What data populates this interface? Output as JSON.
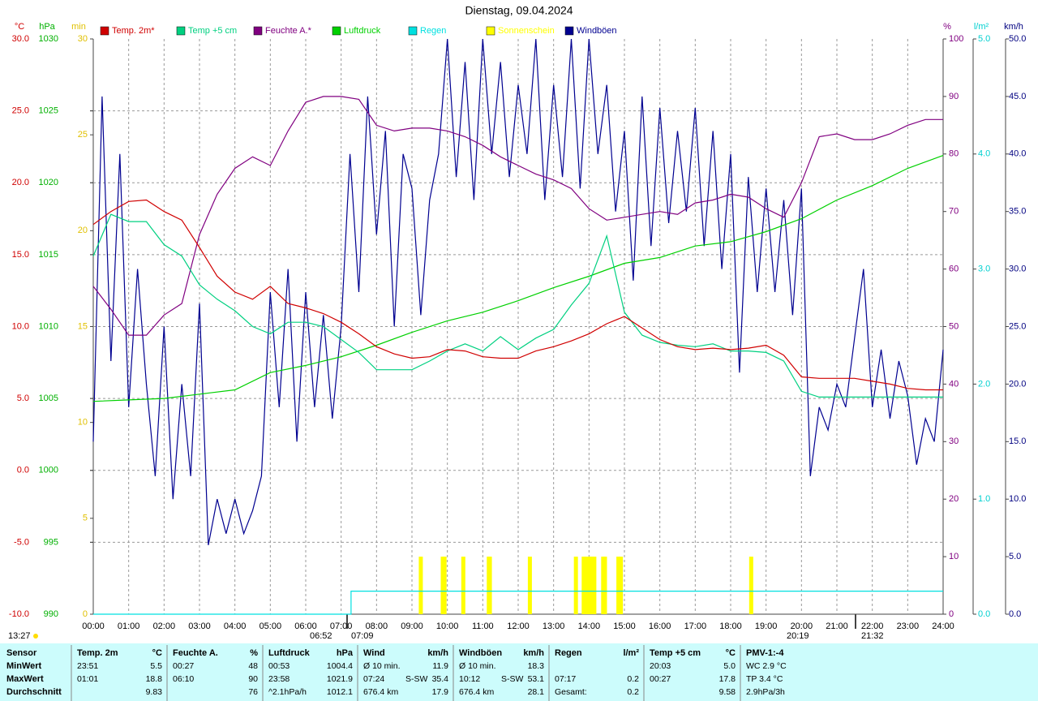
{
  "chart_data": {
    "type": "line",
    "title": "Dienstag, 09.04.2024",
    "grid": true,
    "xlim": [
      0,
      24
    ],
    "xticks": [
      {
        "value": 0,
        "label": "00:00"
      },
      {
        "value": 1,
        "label": "01:00"
      },
      {
        "value": 2,
        "label": "02:00"
      },
      {
        "value": 3,
        "label": "03:00"
      },
      {
        "value": 4,
        "label": "04:00"
      },
      {
        "value": 5,
        "label": "05:00"
      },
      {
        "value": 6,
        "label": "06:00"
      },
      {
        "value": 7,
        "label": "07:00"
      },
      {
        "value": 8,
        "label": "08:00"
      },
      {
        "value": 9,
        "label": "09:00"
      },
      {
        "value": 10,
        "label": "10:00"
      },
      {
        "value": 11,
        "label": "11:00"
      },
      {
        "value": 12,
        "label": "12:00"
      },
      {
        "value": 13,
        "label": "13:00"
      },
      {
        "value": 14,
        "label": "14:00"
      },
      {
        "value": 15,
        "label": "15:00"
      },
      {
        "value": 16,
        "label": "16:00"
      },
      {
        "value": 17,
        "label": "17:00"
      },
      {
        "value": 18,
        "label": "18:00"
      },
      {
        "value": 19,
        "label": "19:00"
      },
      {
        "value": 20,
        "label": "20:00"
      },
      {
        "value": 21,
        "label": "21:00"
      },
      {
        "value": 22,
        "label": "22:00"
      },
      {
        "value": 23,
        "label": "23:00"
      },
      {
        "value": 24,
        "label": "24:00"
      }
    ],
    "axes": [
      {
        "title": "°C",
        "color": "#d00000",
        "lim": [
          -10,
          30
        ],
        "ticks": [
          {
            "value": -10,
            "label": "-10.0"
          },
          {
            "value": -5,
            "label": "-5.0"
          },
          {
            "value": 0,
            "label": "0.0"
          },
          {
            "value": 5,
            "label": "5.0"
          },
          {
            "value": 10,
            "label": "10.0"
          },
          {
            "value": 15,
            "label": "15.0"
          },
          {
            "value": 20,
            "label": "20.0"
          },
          {
            "value": 25,
            "label": "25.0"
          },
          {
            "value": 30,
            "label": "30.0"
          }
        ]
      },
      {
        "title": "hPa",
        "color": "#00b000",
        "lim": [
          990,
          1030
        ],
        "ticks": [
          990,
          995,
          1000,
          1005,
          1010,
          1015,
          1020,
          1025,
          1030
        ]
      },
      {
        "title": "min",
        "color": "#e0c000",
        "lim": [
          0,
          30
        ],
        "ticks": [
          0,
          5,
          10,
          15,
          20,
          25,
          30
        ]
      },
      {
        "title": "%",
        "color": "#800080",
        "lim": [
          0,
          100
        ],
        "ticks": [
          0,
          10,
          20,
          30,
          40,
          50,
          60,
          70,
          80,
          90,
          100
        ]
      },
      {
        "title": "l/m²",
        "color": "#00d0d0",
        "lim": [
          0,
          5
        ],
        "ticks": [
          {
            "value": 0,
            "label": "0.0"
          },
          {
            "value": 1,
            "label": "1.0"
          },
          {
            "value": 2,
            "label": "2.0"
          },
          {
            "value": 3,
            "label": "3.0"
          },
          {
            "value": 4,
            "label": "4.0"
          },
          {
            "value": 5,
            "label": "5.0"
          }
        ]
      },
      {
        "title": "km/h",
        "color": "#000080",
        "lim": [
          0,
          50
        ],
        "ticks": [
          {
            "value": 0,
            "label": "0.0"
          },
          {
            "value": 5,
            "label": "5.0"
          },
          {
            "value": 10,
            "label": "10.0"
          },
          {
            "value": 15,
            "label": "15.0"
          },
          {
            "value": 20,
            "label": "20.0"
          },
          {
            "value": 25,
            "label": "25.0"
          },
          {
            "value": 30,
            "label": "30.0"
          },
          {
            "value": 35,
            "label": "35.0"
          },
          {
            "value": 40,
            "label": "40.0"
          },
          {
            "value": 45,
            "label": "45.0"
          },
          {
            "value": 50,
            "label": "50.0"
          }
        ]
      }
    ],
    "x": [
      0,
      0.5,
      1,
      1.5,
      2,
      2.5,
      3,
      3.5,
      4,
      4.5,
      5,
      5.5,
      6,
      6.5,
      7,
      7.5,
      8,
      8.5,
      9,
      9.5,
      10,
      10.5,
      11,
      11.5,
      12,
      12.5,
      13,
      13.5,
      14,
      14.5,
      15,
      15.5,
      16,
      16.5,
      17,
      17.5,
      18,
      18.5,
      19,
      19.5,
      20,
      20.5,
      21,
      21.5,
      22,
      22.5,
      23,
      23.5,
      24
    ],
    "series": [
      {
        "name": "Temp. 2m*",
        "color": "#d00000",
        "axis": 0,
        "values": [
          17.1,
          18.0,
          18.7,
          18.8,
          18.0,
          17.4,
          15.5,
          13.5,
          12.4,
          11.9,
          12.8,
          11.6,
          11.3,
          10.9,
          10.3,
          9.5,
          8.6,
          8.1,
          7.8,
          7.9,
          8.4,
          8.3,
          7.9,
          7.8,
          7.8,
          8.3,
          8.6,
          9.0,
          9.5,
          10.2,
          10.7,
          9.9,
          9.1,
          8.6,
          8.4,
          8.5,
          8.4,
          8.5,
          8.7,
          8.0,
          6.5,
          6.4,
          6.4,
          6.4,
          6.2,
          6.0,
          5.7,
          5.6,
          5.6
        ]
      },
      {
        "name": "Temp +5 cm",
        "color": "#00d080",
        "axis": 0,
        "values": [
          14.9,
          17.8,
          17.3,
          17.3,
          15.7,
          14.9,
          12.9,
          11.9,
          11.1,
          10.0,
          9.5,
          10.3,
          10.3,
          10.0,
          9.1,
          8.2,
          7.0,
          7.0,
          7.0,
          7.6,
          8.3,
          8.8,
          8.3,
          9.3,
          8.4,
          9.2,
          9.8,
          11.5,
          13.0,
          16.3,
          11.0,
          9.4,
          8.9,
          8.7,
          8.6,
          8.8,
          8.3,
          8.3,
          8.2,
          7.6,
          5.5,
          5.1,
          5.1,
          5.1,
          5.1,
          5.1,
          5.1,
          5.1,
          5.1
        ]
      },
      {
        "name": "Feuchte A.*",
        "color": "#800080",
        "axis": 3,
        "values": [
          57,
          53,
          48.5,
          48.5,
          52,
          54,
          66,
          73,
          77.5,
          79.5,
          78,
          84,
          89,
          90,
          90,
          89.5,
          85,
          84,
          84.5,
          84.5,
          84,
          83,
          81.5,
          79.5,
          78,
          76.5,
          75.5,
          74,
          70.5,
          68.5,
          69,
          69.5,
          70,
          69.5,
          71.5,
          72,
          73,
          72.5,
          70.5,
          69,
          75,
          83,
          83.5,
          82.5,
          82.5,
          83.5,
          85,
          86,
          86
        ]
      },
      {
        "name": "Luftdruck",
        "color": "#00d000",
        "axis": 1,
        "x": [
          0,
          1,
          2,
          3,
          4,
          5,
          6,
          7,
          8,
          9,
          10,
          11,
          12,
          13,
          14,
          15,
          16,
          17,
          18,
          19,
          20,
          21,
          22,
          23,
          24
        ],
        "values": [
          1004.8,
          1004.9,
          1005.0,
          1005.3,
          1005.6,
          1006.8,
          1007.3,
          1007.9,
          1008.7,
          1009.6,
          1010.4,
          1011.0,
          1011.8,
          1012.7,
          1013.5,
          1014.4,
          1014.8,
          1015.6,
          1015.9,
          1016.6,
          1017.5,
          1018.8,
          1019.8,
          1021.0,
          1021.9
        ]
      },
      {
        "name": "Regen",
        "color": "#00e0e0",
        "axis": 4,
        "x": [
          0,
          7.28,
          7.28,
          24
        ],
        "values": [
          0,
          0,
          0.2,
          0.2
        ]
      },
      {
        "name": "Sonnenschein",
        "color": "#ffff00",
        "axis": 2,
        "mark": "bar",
        "x": [
          9.25,
          9.87,
          9.92,
          10.45,
          11.17,
          11.2,
          12.33,
          13.63,
          13.85,
          13.93,
          14.03,
          14.08,
          14.15,
          14.4,
          14.45,
          14.83,
          14.9,
          18.58
        ],
        "values": [
          3,
          3,
          3,
          3,
          3,
          3,
          3,
          3,
          3,
          3,
          3,
          3,
          3,
          3,
          3,
          3,
          3,
          3
        ]
      },
      {
        "name": "Windböen",
        "color": "#000090",
        "axis": 5,
        "x": [
          0,
          0.25,
          0.5,
          0.75,
          1,
          1.25,
          1.5,
          1.75,
          2,
          2.25,
          2.5,
          2.75,
          3,
          3.25,
          3.5,
          3.75,
          4,
          4.25,
          4.5,
          4.75,
          5,
          5.25,
          5.5,
          5.75,
          6,
          6.25,
          6.5,
          6.75,
          7,
          7.25,
          7.5,
          7.75,
          8,
          8.25,
          8.5,
          8.75,
          9,
          9.25,
          9.5,
          9.75,
          10,
          10.25,
          10.5,
          10.75,
          11,
          11.25,
          11.5,
          11.75,
          12,
          12.25,
          12.5,
          12.75,
          13,
          13.25,
          13.5,
          13.75,
          14,
          14.25,
          14.5,
          14.75,
          15,
          15.25,
          15.5,
          15.75,
          16,
          16.25,
          16.5,
          16.75,
          17,
          17.25,
          17.5,
          17.75,
          18,
          18.25,
          18.5,
          18.75,
          19,
          19.25,
          19.5,
          19.75,
          20,
          20.25,
          20.5,
          20.75,
          21,
          21.25,
          21.5,
          21.75,
          22,
          22.25,
          22.5,
          22.75,
          23,
          23.25,
          23.5,
          23.75,
          24
        ],
        "values": [
          15,
          45,
          22,
          40,
          18,
          30,
          20,
          12,
          25,
          10,
          20,
          12,
          27,
          6,
          10,
          7,
          10,
          7,
          9,
          12,
          28,
          18,
          30,
          15,
          28,
          18,
          26,
          17,
          25,
          40,
          28,
          45,
          33,
          42,
          25,
          40,
          37,
          26,
          36,
          40,
          50,
          38,
          48,
          36,
          50,
          40,
          48,
          38,
          46,
          40,
          50,
          36,
          46,
          38,
          50,
          37,
          50,
          40,
          46,
          35,
          42,
          29,
          45,
          32,
          44,
          34,
          42,
          35,
          44,
          32,
          42,
          30,
          40,
          21,
          38,
          28,
          37,
          28,
          36,
          26,
          37,
          12,
          18,
          16,
          20,
          18,
          24,
          30,
          18,
          23,
          17,
          22,
          19,
          13,
          17,
          15,
          23
        ]
      }
    ],
    "annotations": [
      "13:27",
      "06:52",
      "07:09",
      "20:19",
      "21:32"
    ]
  },
  "table": {
    "corner": "Sensor",
    "row_labels": [
      "MinWert",
      "MaxWert",
      "Durchschnitt"
    ],
    "groups": [
      {
        "title": "Temp. 2m",
        "unit": "°C",
        "rows": [
          [
            "23:51",
            "5.5"
          ],
          [
            "01:01",
            "18.8"
          ],
          [
            "9.83"
          ]
        ]
      },
      {
        "title": "Feuchte A.",
        "unit": "%",
        "rows": [
          [
            "00:27",
            "48"
          ],
          [
            "06:10",
            "90"
          ],
          [
            "76"
          ]
        ]
      },
      {
        "title": "Luftdruck",
        "unit": "hPa",
        "rows": [
          [
            "00:53",
            "1004.4"
          ],
          [
            "23:58",
            "1021.9"
          ],
          [
            "^2.1hPa/h",
            "1012.1"
          ]
        ]
      },
      {
        "title": "Wind",
        "unit": "km/h",
        "rows": [
          [
            "Ø 10 min.",
            "11.9"
          ],
          [
            "07:24",
            "S-SW",
            "35.4"
          ],
          [
            "676.4 km",
            "17.9"
          ]
        ]
      },
      {
        "title": "Windböen",
        "unit": "km/h",
        "rows": [
          [
            "Ø 10 min.",
            "18.3"
          ],
          [
            "10:12",
            "S-SW",
            "53.1"
          ],
          [
            "676.4 km",
            "28.1"
          ]
        ]
      },
      {
        "title": "Regen",
        "unit": "l/m²",
        "rows": [
          [],
          [
            "07:17",
            "0.2"
          ],
          [
            "Gesamt:",
            "0.2"
          ]
        ]
      },
      {
        "title": "Temp +5 cm",
        "unit": "°C",
        "rows": [
          [
            "20:03",
            "5.0"
          ],
          [
            "00:27",
            "17.8"
          ],
          [
            "9.58"
          ]
        ]
      },
      {
        "title": "PMV-1:-4",
        "rows": [
          [
            "WC 2.9 °C"
          ],
          [
            "TP 3.4 °C"
          ],
          [
            "2.9hPa/3h"
          ]
        ]
      }
    ]
  }
}
